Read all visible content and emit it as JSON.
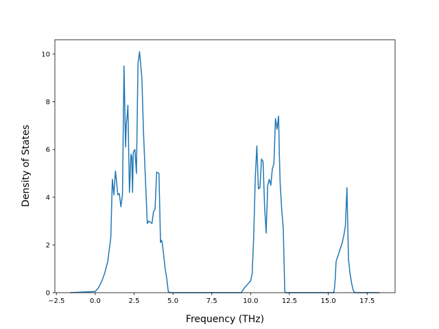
{
  "chart_data": {
    "type": "line",
    "title": "",
    "xlabel": "Frequency (THz)",
    "ylabel": "Density of States",
    "xlim": [
      -2.6,
      19.3
    ],
    "ylim": [
      0,
      10.6
    ],
    "x_ticks": [
      -2.5,
      0.0,
      2.5,
      5.0,
      7.5,
      10.0,
      12.5,
      15.0,
      17.5
    ],
    "x_tick_labels": [
      "−2.5",
      "0.0",
      "2.5",
      "5.0",
      "7.5",
      "10.0",
      "12.5",
      "15.0",
      "17.5"
    ],
    "y_ticks": [
      0,
      2,
      4,
      6,
      8,
      10
    ],
    "y_tick_labels": [
      "0",
      "2",
      "4",
      "6",
      "8",
      "10"
    ],
    "grid": false,
    "legend": "none",
    "series": [
      {
        "color": "#1f77b4",
        "x": [
          -1.6,
          0.0,
          0.2,
          0.4,
          0.6,
          0.8,
          1.0,
          1.1,
          1.2,
          1.3,
          1.35,
          1.45,
          1.55,
          1.65,
          1.75,
          1.85,
          1.95,
          2.0,
          2.05,
          2.1,
          2.2,
          2.3,
          2.35,
          2.4,
          2.45,
          2.55,
          2.65,
          2.75,
          2.85,
          3.0,
          3.1,
          3.2,
          3.35,
          3.45,
          3.55,
          3.65,
          3.75,
          3.85,
          3.95,
          4.1,
          4.2,
          4.25,
          4.3,
          4.4,
          4.5,
          4.6,
          4.7,
          4.8,
          5.0,
          9.4,
          9.6,
          9.8,
          10.0,
          10.1,
          10.2,
          10.3,
          10.4,
          10.5,
          10.6,
          10.7,
          10.8,
          10.9,
          11.0,
          11.1,
          11.2,
          11.3,
          11.4,
          11.5,
          11.6,
          11.7,
          11.8,
          11.85,
          11.9,
          12.0,
          12.1,
          12.2,
          12.25,
          15.35,
          15.4,
          15.45,
          15.5,
          15.6,
          15.7,
          15.8,
          15.9,
          16.0,
          16.1,
          16.2,
          16.3,
          16.4,
          16.5,
          16.6,
          16.7,
          18.3
        ],
        "y": [
          0,
          0.05,
          0.2,
          0.45,
          0.8,
          1.3,
          2.3,
          4.75,
          4.1,
          5.1,
          4.8,
          4.1,
          4.15,
          3.6,
          4.1,
          9.5,
          6.1,
          7.1,
          7.4,
          7.85,
          4.2,
          5.8,
          5.7,
          4.2,
          5.9,
          6.0,
          5.0,
          9.6,
          10.1,
          9.0,
          6.8,
          5.2,
          2.9,
          3.0,
          2.95,
          2.9,
          3.4,
          3.5,
          5.05,
          5.0,
          2.1,
          2.2,
          2.15,
          1.6,
          1.0,
          0.6,
          0.05,
          0,
          0,
          0,
          0.2,
          0.35,
          0.5,
          0.8,
          2.4,
          4.8,
          6.15,
          4.35,
          4.4,
          5.6,
          5.5,
          3.6,
          2.5,
          4.5,
          4.75,
          4.5,
          5.2,
          5.4,
          7.3,
          6.85,
          7.4,
          5.8,
          4.6,
          3.5,
          2.7,
          0.05,
          0,
          0,
          0.2,
          0.6,
          1.3,
          1.5,
          1.7,
          1.9,
          2.1,
          2.4,
          2.8,
          4.4,
          1.4,
          0.8,
          0.4,
          0.1,
          0,
          0
        ]
      }
    ]
  }
}
